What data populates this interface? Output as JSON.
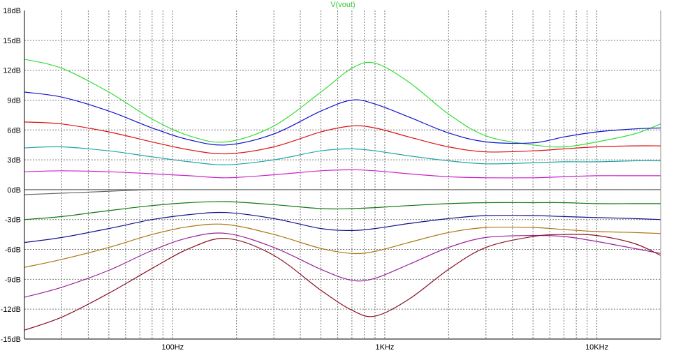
{
  "chart_data": {
    "type": "line",
    "title": "V(vout)",
    "title_color": "#33cc33",
    "x_scale": "log",
    "xlim": [
      20,
      20000
    ],
    "ylim": [
      -15,
      18
    ],
    "y_ticks": [
      18,
      15,
      12,
      9,
      6,
      3,
      0,
      -3,
      -6,
      -9,
      -12,
      -15
    ],
    "y_tick_labels": [
      "18dB",
      "15dB",
      "12dB",
      "9dB",
      "6dB",
      "3dB",
      "0dB",
      "-3dB",
      "-6dB",
      "-9dB",
      "-12dB",
      "-15dB"
    ],
    "x_ticks": [
      100,
      1000,
      10000
    ],
    "x_tick_labels": [
      "100Hz",
      "1KHz",
      "10KHz"
    ],
    "grid": true,
    "series": [
      {
        "color": "#33dd33",
        "points": [
          [
            20,
            13.1
          ],
          [
            30,
            12.2
          ],
          [
            50,
            9.8
          ],
          [
            80,
            7.1
          ],
          [
            120,
            5.4
          ],
          [
            180,
            4.8
          ],
          [
            300,
            6.4
          ],
          [
            500,
            9.8
          ],
          [
            700,
            12.2
          ],
          [
            900,
            12.7
          ],
          [
            1300,
            10.8
          ],
          [
            2000,
            7.6
          ],
          [
            3000,
            5.4
          ],
          [
            5000,
            4.5
          ],
          [
            7000,
            4.3
          ],
          [
            10000,
            4.8
          ],
          [
            15000,
            5.6
          ],
          [
            20000,
            6.6
          ]
        ]
      },
      {
        "color": "#1010cc",
        "points": [
          [
            20,
            9.8
          ],
          [
            30,
            9.3
          ],
          [
            50,
            7.9
          ],
          [
            80,
            6.2
          ],
          [
            120,
            5.0
          ],
          [
            180,
            4.5
          ],
          [
            300,
            5.6
          ],
          [
            500,
            7.9
          ],
          [
            700,
            9.0
          ],
          [
            900,
            8.6
          ],
          [
            1300,
            7.3
          ],
          [
            2000,
            5.7
          ],
          [
            3000,
            4.8
          ],
          [
            5000,
            4.7
          ],
          [
            7000,
            5.3
          ],
          [
            10000,
            5.8
          ],
          [
            15000,
            6.1
          ],
          [
            20000,
            6.2
          ]
        ]
      },
      {
        "color": "#dd1111",
        "points": [
          [
            20,
            6.8
          ],
          [
            30,
            6.6
          ],
          [
            50,
            5.8
          ],
          [
            80,
            4.8
          ],
          [
            120,
            4.0
          ],
          [
            180,
            3.6
          ],
          [
            300,
            4.3
          ],
          [
            500,
            5.8
          ],
          [
            700,
            6.4
          ],
          [
            900,
            6.2
          ],
          [
            1300,
            5.3
          ],
          [
            2000,
            4.3
          ],
          [
            3000,
            3.8
          ],
          [
            5000,
            3.9
          ],
          [
            7000,
            4.1
          ],
          [
            10000,
            4.3
          ],
          [
            15000,
            4.4
          ],
          [
            20000,
            4.4
          ]
        ]
      },
      {
        "color": "#22a5a5",
        "points": [
          [
            20,
            4.2
          ],
          [
            30,
            4.3
          ],
          [
            50,
            3.9
          ],
          [
            80,
            3.3
          ],
          [
            120,
            2.8
          ],
          [
            180,
            2.5
          ],
          [
            300,
            3.0
          ],
          [
            500,
            3.9
          ],
          [
            700,
            4.1
          ],
          [
            900,
            3.9
          ],
          [
            1300,
            3.4
          ],
          [
            2000,
            2.9
          ],
          [
            3000,
            2.6
          ],
          [
            5000,
            2.7
          ],
          [
            7000,
            2.8
          ],
          [
            10000,
            2.8
          ],
          [
            15000,
            2.9
          ],
          [
            20000,
            2.9
          ]
        ]
      },
      {
        "color": "#cc22cc",
        "points": [
          [
            20,
            1.8
          ],
          [
            30,
            1.9
          ],
          [
            50,
            1.8
          ],
          [
            80,
            1.6
          ],
          [
            120,
            1.4
          ],
          [
            180,
            1.2
          ],
          [
            300,
            1.5
          ],
          [
            500,
            1.9
          ],
          [
            700,
            2.0
          ],
          [
            900,
            1.9
          ],
          [
            1300,
            1.6
          ],
          [
            2000,
            1.3
          ],
          [
            3000,
            1.2
          ],
          [
            5000,
            1.2
          ],
          [
            7000,
            1.3
          ],
          [
            10000,
            1.4
          ],
          [
            15000,
            1.4
          ],
          [
            20000,
            1.4
          ]
        ]
      },
      {
        "color": "#666666",
        "points": [
          [
            20,
            -0.5
          ],
          [
            30,
            -0.35
          ],
          [
            45,
            -0.2
          ],
          [
            65,
            -0.05
          ],
          [
            80,
            0.0
          ]
        ]
      },
      {
        "color": "#117711",
        "points": [
          [
            20,
            -3.0
          ],
          [
            30,
            -2.7
          ],
          [
            50,
            -2.1
          ],
          [
            80,
            -1.6
          ],
          [
            120,
            -1.3
          ],
          [
            180,
            -1.2
          ],
          [
            300,
            -1.5
          ],
          [
            500,
            -1.9
          ],
          [
            700,
            -1.9
          ],
          [
            900,
            -1.8
          ],
          [
            1300,
            -1.6
          ],
          [
            2000,
            -1.4
          ],
          [
            3000,
            -1.3
          ],
          [
            5000,
            -1.3
          ],
          [
            7000,
            -1.3
          ],
          [
            10000,
            -1.4
          ],
          [
            15000,
            -1.4
          ],
          [
            20000,
            -1.4
          ]
        ]
      },
      {
        "color": "#11118a",
        "points": [
          [
            20,
            -5.3
          ],
          [
            30,
            -4.8
          ],
          [
            50,
            -3.9
          ],
          [
            80,
            -3.0
          ],
          [
            120,
            -2.5
          ],
          [
            180,
            -2.3
          ],
          [
            300,
            -2.9
          ],
          [
            500,
            -3.9
          ],
          [
            700,
            -4.1
          ],
          [
            900,
            -3.9
          ],
          [
            1300,
            -3.4
          ],
          [
            2000,
            -2.9
          ],
          [
            3000,
            -2.6
          ],
          [
            5000,
            -2.6
          ],
          [
            7000,
            -2.7
          ],
          [
            10000,
            -2.8
          ],
          [
            15000,
            -2.9
          ],
          [
            20000,
            -3.0
          ]
        ]
      },
      {
        "color": "#aa7711",
        "points": [
          [
            20,
            -7.8
          ],
          [
            30,
            -7.0
          ],
          [
            50,
            -5.8
          ],
          [
            80,
            -4.5
          ],
          [
            120,
            -3.7
          ],
          [
            180,
            -3.5
          ],
          [
            300,
            -4.5
          ],
          [
            500,
            -5.9
          ],
          [
            700,
            -6.4
          ],
          [
            900,
            -6.2
          ],
          [
            1300,
            -5.3
          ],
          [
            2000,
            -4.3
          ],
          [
            3000,
            -3.8
          ],
          [
            5000,
            -3.8
          ],
          [
            7000,
            -4.0
          ],
          [
            10000,
            -4.2
          ],
          [
            15000,
            -4.3
          ],
          [
            20000,
            -4.4
          ]
        ]
      },
      {
        "color": "#992299",
        "points": [
          [
            20,
            -10.8
          ],
          [
            30,
            -9.8
          ],
          [
            50,
            -8.1
          ],
          [
            80,
            -6.1
          ],
          [
            120,
            -4.8
          ],
          [
            180,
            -4.4
          ],
          [
            300,
            -5.8
          ],
          [
            500,
            -8.0
          ],
          [
            700,
            -9.1
          ],
          [
            900,
            -8.9
          ],
          [
            1300,
            -7.5
          ],
          [
            2000,
            -5.8
          ],
          [
            3000,
            -4.8
          ],
          [
            5000,
            -4.6
          ],
          [
            7000,
            -4.7
          ],
          [
            10000,
            -5.2
          ],
          [
            15000,
            -5.9
          ],
          [
            20000,
            -6.4
          ]
        ]
      },
      {
        "color": "#881122",
        "points": [
          [
            20,
            -14.1
          ],
          [
            30,
            -12.8
          ],
          [
            50,
            -10.4
          ],
          [
            80,
            -7.9
          ],
          [
            120,
            -5.9
          ],
          [
            180,
            -4.9
          ],
          [
            300,
            -6.6
          ],
          [
            500,
            -10.1
          ],
          [
            700,
            -12.1
          ],
          [
            900,
            -12.7
          ],
          [
            1300,
            -11.0
          ],
          [
            2000,
            -8.0
          ],
          [
            3000,
            -5.8
          ],
          [
            5000,
            -4.7
          ],
          [
            7000,
            -4.5
          ],
          [
            10000,
            -4.6
          ],
          [
            15000,
            -5.4
          ],
          [
            20000,
            -6.6
          ]
        ]
      }
    ]
  }
}
